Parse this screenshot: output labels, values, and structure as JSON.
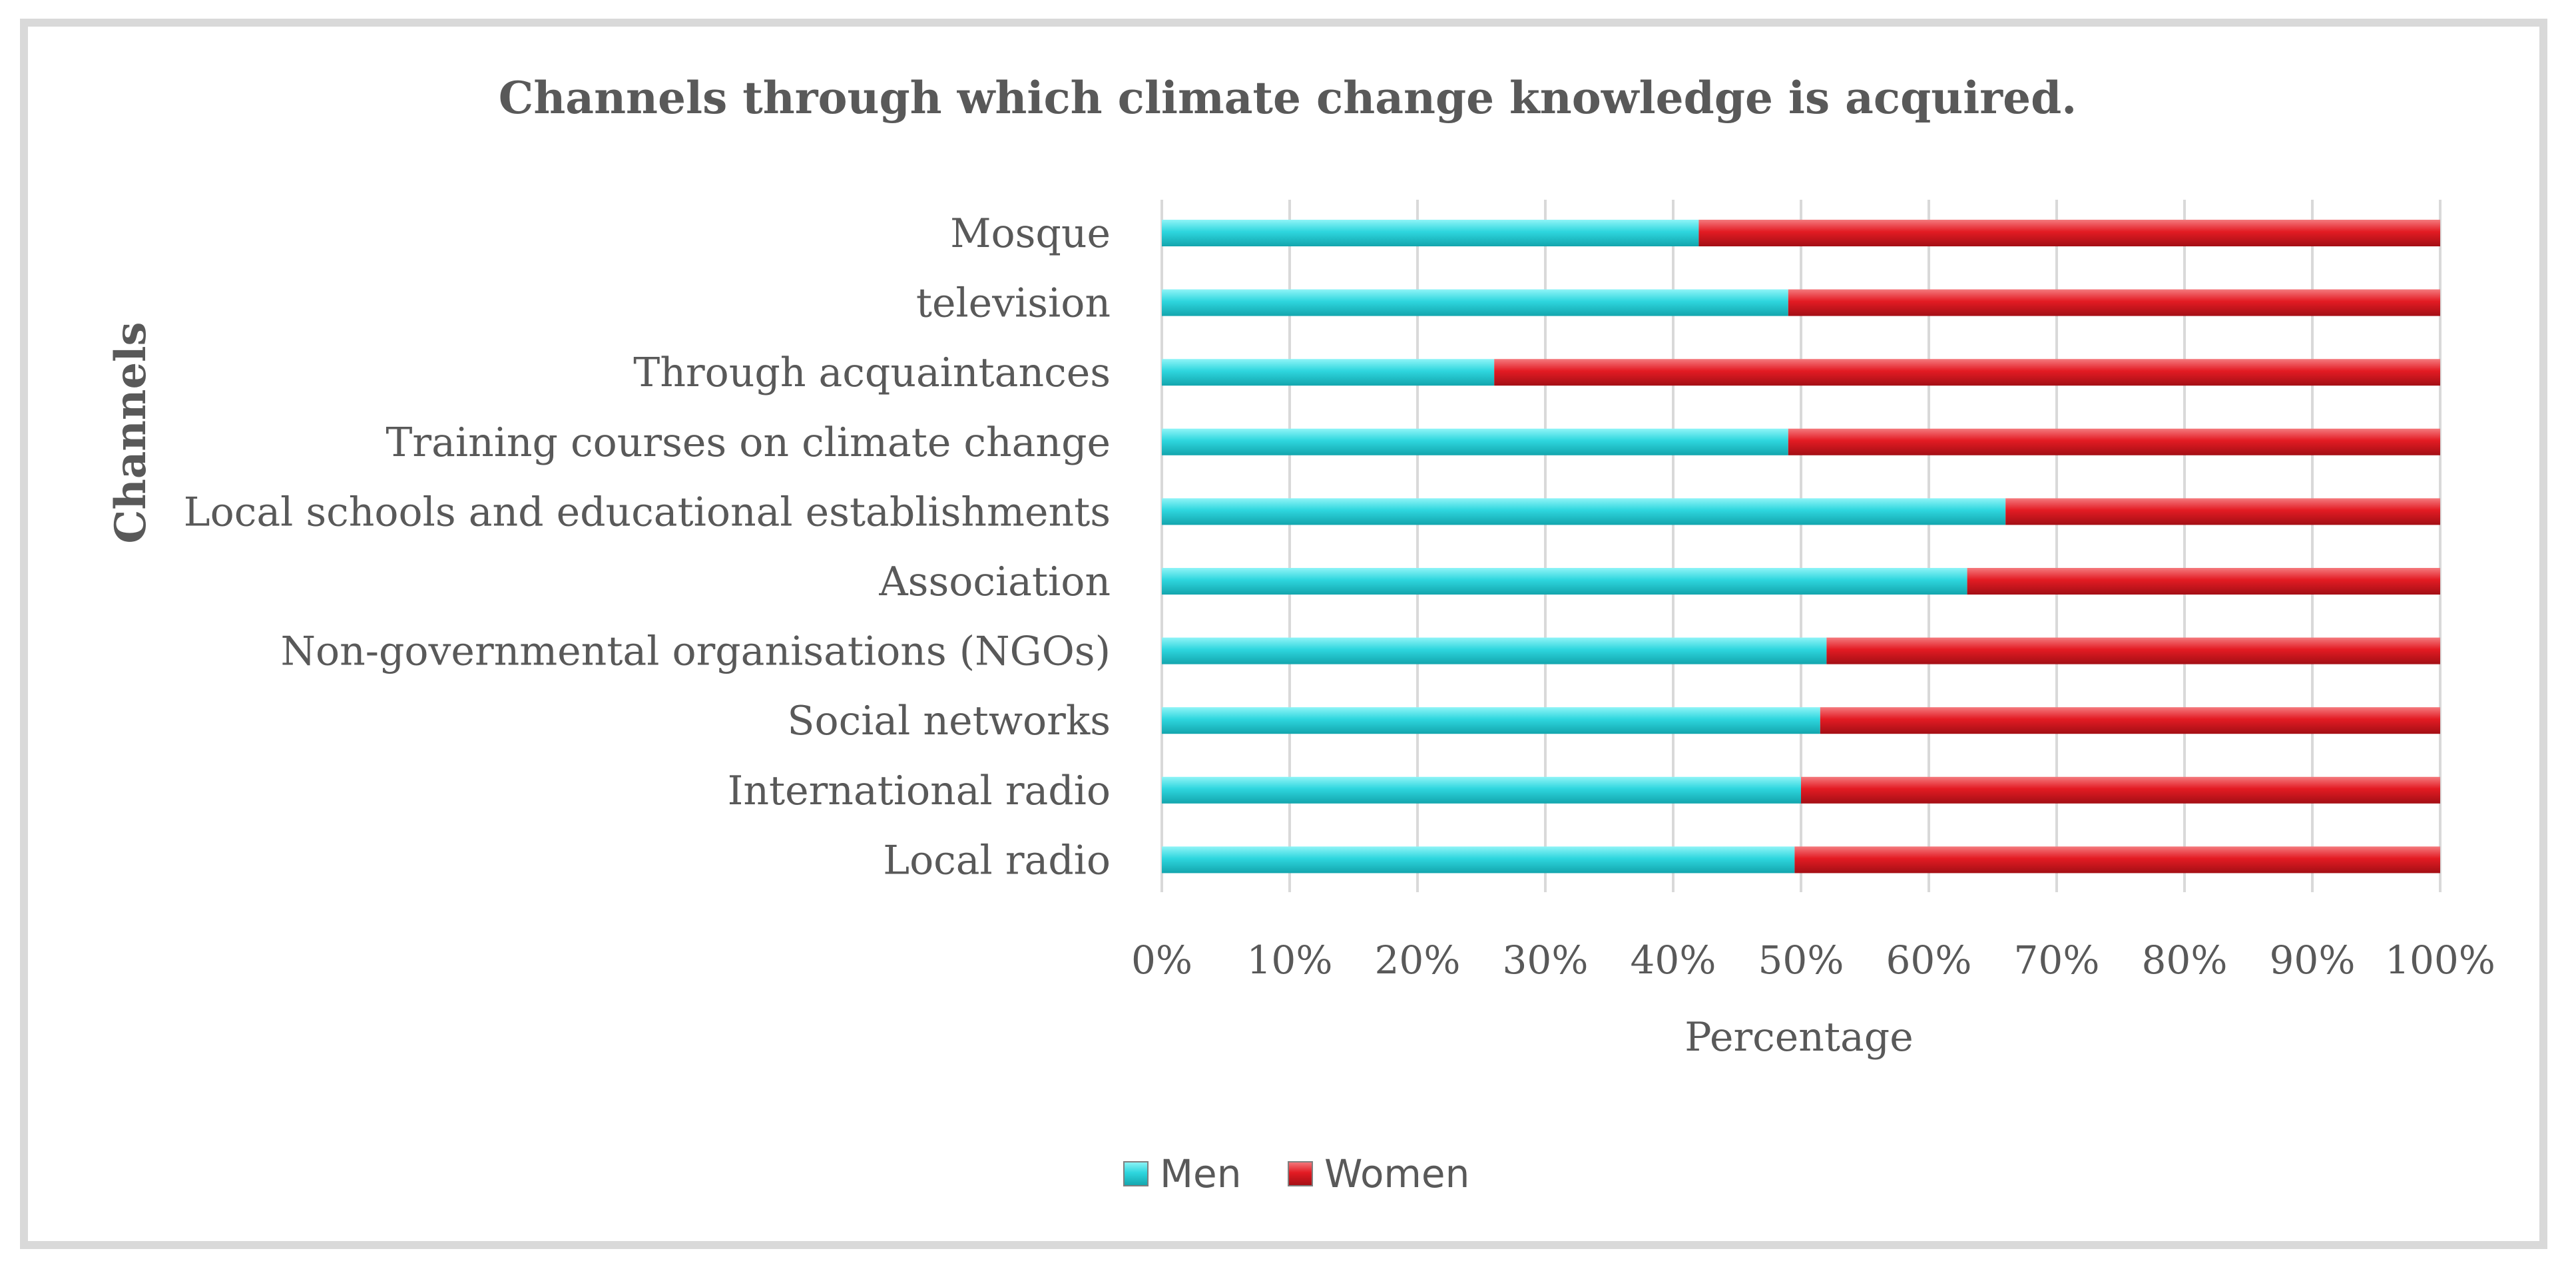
{
  "chart_data": {
    "type": "bar",
    "orientation": "horizontal",
    "stacking": "percent",
    "title": "Channels through which climate change knowledge is acquired.",
    "xlabel": "Percentage",
    "ylabel": "Channels",
    "xlim": [
      0,
      100
    ],
    "x_ticks": [
      "0%",
      "10%",
      "20%",
      "30%",
      "40%",
      "50%",
      "60%",
      "70%",
      "80%",
      "90%",
      "100%"
    ],
    "grid": "vertical",
    "legend_position": "bottom",
    "categories": [
      "Mosque",
      "television",
      "Through acquaintances",
      "Training courses on climate change",
      "Local schools and educational establishments",
      "Association",
      "Non-governmental organisations (NGOs)",
      "Social networks",
      "International radio",
      "Local radio"
    ],
    "series": [
      {
        "name": "Men",
        "color": "#2ed6de",
        "values": [
          42,
          49,
          26,
          49,
          66,
          63,
          52,
          51.5,
          50,
          49.5
        ]
      },
      {
        "name": "Women",
        "color": "#e31b23",
        "values": [
          58,
          51,
          74,
          51,
          34,
          37,
          48,
          48.5,
          50,
          50.5
        ]
      }
    ]
  }
}
